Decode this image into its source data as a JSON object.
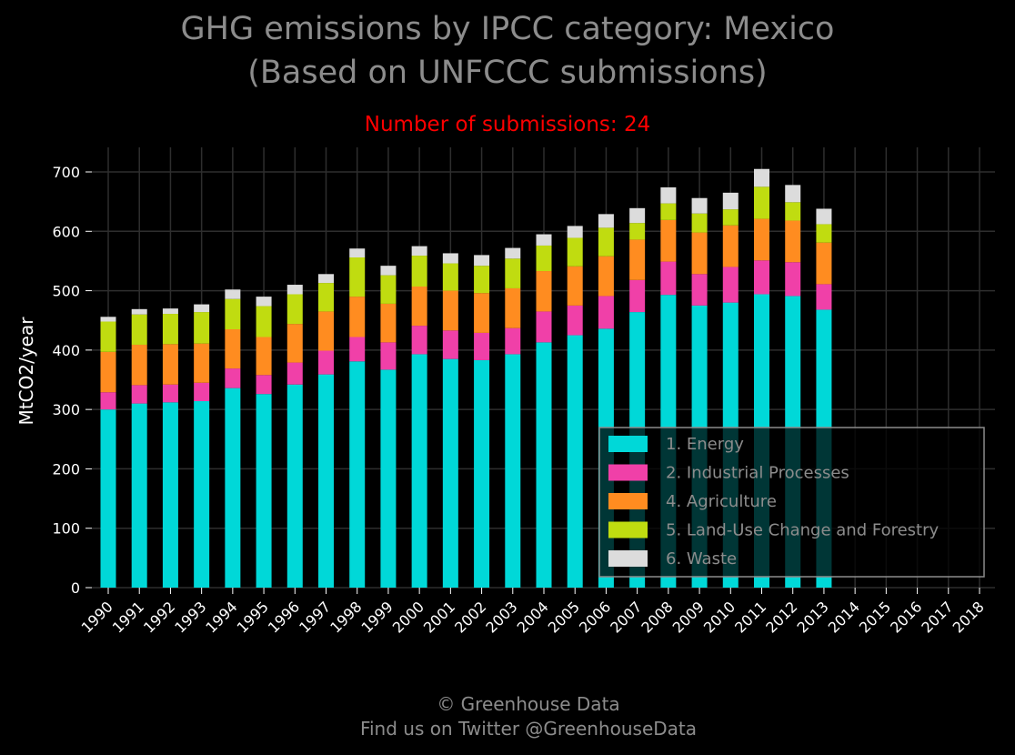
{
  "title_line1": "GHG emissions by IPCC category: Mexico",
  "title_line2": "(Based on UNFCCC submissions)",
  "subtitle": "Number of submissions: 24",
  "footer_line1": "© Greenhouse Data",
  "footer_line2": "Find us on Twitter @GreenhouseData",
  "colors": {
    "background": "#000000",
    "grid": "#2e2e2e",
    "text": "#8c8c8c",
    "subtitle": "#ff0000"
  },
  "chart_data": {
    "type": "bar",
    "stacked": true,
    "ylabel": "MtCO2/year",
    "ylim": [
      0,
      740
    ],
    "yticks": [
      0,
      100,
      200,
      300,
      400,
      500,
      600,
      700
    ],
    "grid": true,
    "legend_position": "lower-right",
    "categories": [
      "1990",
      "1991",
      "1992",
      "1993",
      "1994",
      "1995",
      "1996",
      "1997",
      "1998",
      "1999",
      "2000",
      "2001",
      "2002",
      "2003",
      "2004",
      "2005",
      "2006",
      "2007",
      "2008",
      "2009",
      "2010",
      "2011",
      "2012",
      "2013",
      "2014",
      "2015",
      "2016",
      "2017",
      "2018"
    ],
    "series": [
      {
        "name": "1. Energy",
        "color": "#00d8d8",
        "values": [
          300,
          310,
          312,
          314,
          336,
          326,
          342,
          359,
          381,
          367,
          393,
          385,
          383,
          393,
          413,
          425,
          436,
          464,
          493,
          475,
          480,
          494,
          491,
          468,
          null,
          null,
          null,
          null,
          null
        ]
      },
      {
        "name": "2. Industrial Processes",
        "color": "#f040a8",
        "values": [
          29,
          31,
          30,
          31,
          33,
          32,
          37,
          40,
          41,
          46,
          48,
          48,
          46,
          44,
          52,
          50,
          55,
          54,
          56,
          53,
          60,
          57,
          57,
          43,
          null,
          null,
          null,
          null,
          null
        ]
      },
      {
        "name": "4. Agriculture",
        "color": "#ff8c20",
        "values": [
          68,
          68,
          68,
          66,
          66,
          64,
          65,
          66,
          68,
          65,
          66,
          67,
          67,
          67,
          68,
          66,
          67,
          68,
          70,
          70,
          70,
          70,
          70,
          70,
          null,
          null,
          null,
          null,
          null
        ]
      },
      {
        "name": "5. Land-Use Change and Forestry",
        "color": "#c0dc10",
        "values": [
          51,
          51,
          51,
          53,
          51,
          52,
          50,
          48,
          66,
          48,
          52,
          46,
          46,
          50,
          43,
          48,
          48,
          28,
          28,
          32,
          27,
          54,
          31,
          31,
          null,
          null,
          null,
          null,
          null
        ]
      },
      {
        "name": "6. Waste",
        "color": "#dcdcdc",
        "values": [
          8,
          9,
          9,
          13,
          16,
          16,
          16,
          15,
          15,
          16,
          16,
          17,
          18,
          18,
          19,
          20,
          23,
          25,
          27,
          26,
          28,
          30,
          29,
          26,
          null,
          null,
          null,
          null,
          null
        ]
      }
    ]
  }
}
